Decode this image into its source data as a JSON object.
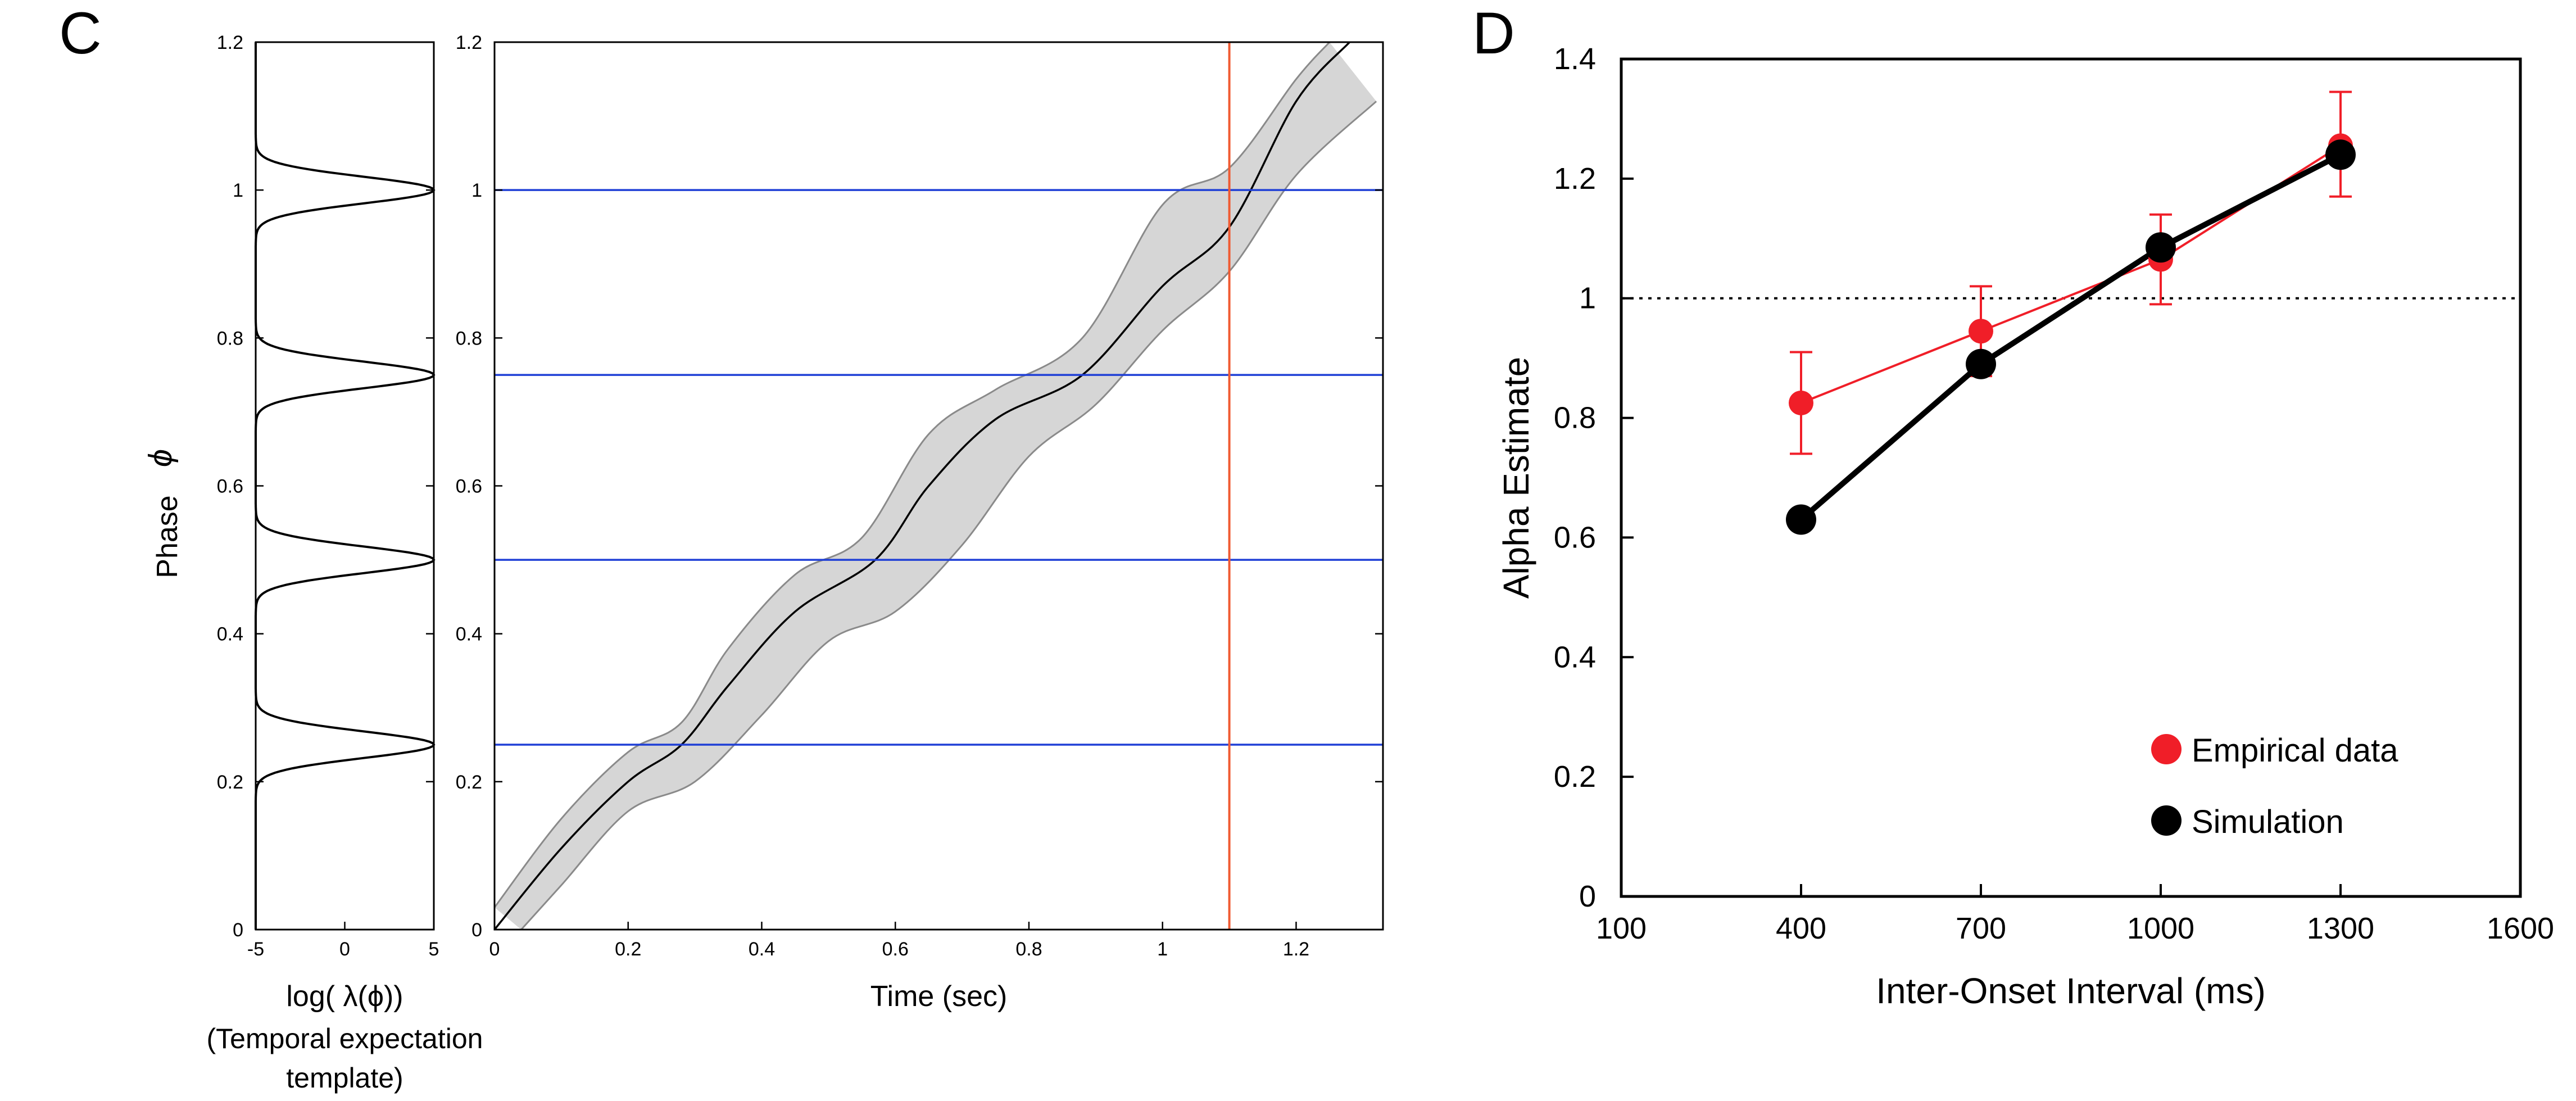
{
  "panels": {
    "c_letter": "C",
    "d_letter": "D"
  },
  "colors": {
    "blue": "#1f3fd6",
    "red_line": "#f05a32",
    "red_marker": "#f01e28",
    "band_fill": "#d6d6d6",
    "band_edge": "#8a8a8a"
  },
  "chart_data": [
    {
      "id": "template",
      "type": "line",
      "xlabel": "log( λ(ϕ))",
      "xlabel_sub": [
        "(Temporal expectation",
        "template)"
      ],
      "ylabel": "Phase",
      "ylabel_symbol": "ϕ",
      "xlim": [
        -5,
        5
      ],
      "ylim": [
        0,
        1.2
      ],
      "xticks": [
        "-5",
        "0",
        "5"
      ],
      "yticks": [
        "0",
        "0.2",
        "0.4",
        "0.6",
        "0.8",
        "1",
        "1.2"
      ],
      "peaks_phase": [
        0.25,
        0.5,
        0.75,
        1.0
      ],
      "baseline": -5,
      "peak_value": 5
    },
    {
      "id": "phase_trajectory",
      "type": "area",
      "xlabel": "Time (sec)",
      "xlim": [
        0,
        1.33
      ],
      "ylim": [
        0,
        1.2
      ],
      "xticks": [
        "0",
        "0.2",
        "0.4",
        "0.6",
        "0.8",
        "1",
        "1.2"
      ],
      "yticks": [
        "0",
        "0.2",
        "0.4",
        "0.6",
        "0.8",
        "1",
        "1.2"
      ],
      "hlines": [
        0.25,
        0.5,
        0.75,
        1.0
      ],
      "vline": 1.1,
      "mean": {
        "x": [
          0,
          0.1,
          0.2,
          0.28,
          0.35,
          0.45,
          0.57,
          0.65,
          0.75,
          0.88,
          1.0,
          1.1,
          1.2,
          1.28
        ],
        "y": [
          0,
          0.11,
          0.2,
          0.25,
          0.33,
          0.43,
          0.5,
          0.6,
          0.69,
          0.75,
          0.87,
          0.95,
          1.12,
          1.2
        ]
      },
      "band_upper": {
        "x": [
          0,
          0.1,
          0.2,
          0.28,
          0.35,
          0.45,
          0.55,
          0.65,
          0.75,
          0.88,
          1.0,
          1.1,
          1.2,
          1.25
        ],
        "y": [
          0.03,
          0.15,
          0.24,
          0.28,
          0.38,
          0.48,
          0.53,
          0.67,
          0.73,
          0.8,
          0.98,
          1.03,
          1.15,
          1.2
        ]
      },
      "band_lower": {
        "x": [
          0.04,
          0.1,
          0.2,
          0.3,
          0.4,
          0.5,
          0.6,
          0.7,
          0.8,
          0.9,
          1.0,
          1.1,
          1.2,
          1.32
        ],
        "y": [
          0,
          0.06,
          0.16,
          0.2,
          0.29,
          0.39,
          0.43,
          0.52,
          0.64,
          0.71,
          0.81,
          0.89,
          1.02,
          1.12
        ]
      }
    },
    {
      "id": "alpha_estimate",
      "type": "line",
      "xlabel": "Inter-Onset Interval (ms)",
      "ylabel": "Alpha Estimate",
      "xlim": [
        100,
        1600
      ],
      "ylim": [
        0,
        1.4
      ],
      "xticks": [
        "100",
        "400",
        "700",
        "1000",
        "1300",
        "1600"
      ],
      "yticks": [
        "0",
        "0.2",
        "0.4",
        "0.6",
        "0.8",
        "1",
        "1.2",
        "1.4"
      ],
      "reference_line": 1.0,
      "legend_position": "bottom-right",
      "series": [
        {
          "name": "Empirical data",
          "x": [
            400,
            700,
            1000,
            1300
          ],
          "y": [
            0.825,
            0.945,
            1.065,
            1.255
          ],
          "err_low": [
            0.74,
            0.87,
            0.99,
            1.17
          ],
          "err_high": [
            0.91,
            1.02,
            1.14,
            1.345
          ]
        },
        {
          "name": "Simulation",
          "x": [
            400,
            700,
            1000,
            1300
          ],
          "y": [
            0.63,
            0.89,
            1.085,
            1.24
          ]
        }
      ]
    }
  ]
}
